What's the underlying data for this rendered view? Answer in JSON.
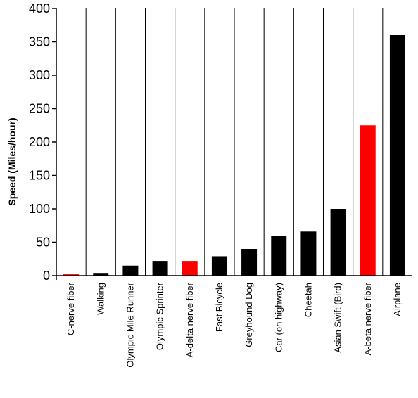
{
  "chart_data": {
    "type": "bar",
    "title": "",
    "xlabel": "",
    "ylabel": "Speed (Miles/hour)",
    "ylim": [
      0,
      400
    ],
    "yticks": [
      0,
      50,
      100,
      150,
      200,
      250,
      300,
      350,
      400
    ],
    "grid": "vertical category separators",
    "legend": "none",
    "colors": {
      "default": "#000000",
      "highlight": "#ff0000"
    },
    "categories": [
      "C-nerve fiber",
      "Walking",
      "Olympic Mile Runner",
      "Olympic Sprinter",
      "A-delta nerve fiber",
      "Fast Bicycle",
      "Greyhound Dog",
      "Car (on highway)",
      "Cheetah",
      "Asian Swift (Bird)",
      "A-beta nerve fiber",
      "Airplane"
    ],
    "values": [
      2,
      4,
      15,
      22,
      22,
      29,
      40,
      60,
      66,
      100,
      225,
      360
    ],
    "highlighted": [
      true,
      false,
      false,
      false,
      true,
      false,
      false,
      false,
      false,
      false,
      true,
      false
    ]
  }
}
